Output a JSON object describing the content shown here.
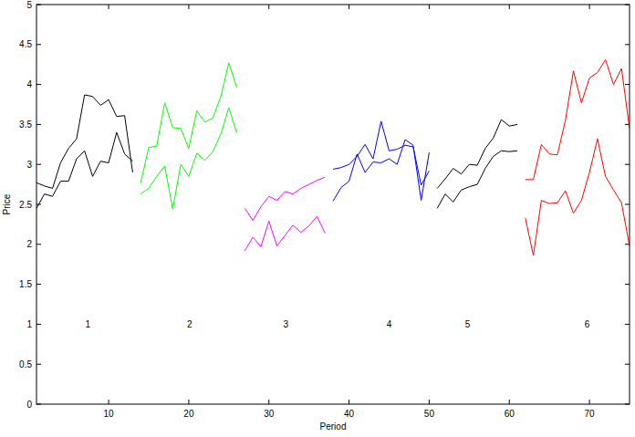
{
  "chart_data": {
    "type": "line",
    "x_label": "Period",
    "y_label": "Price",
    "xlim": [
      1,
      75
    ],
    "xticks": [
      10,
      20,
      30,
      40,
      50,
      60,
      70
    ],
    "ylim": [
      0,
      5
    ],
    "yticks": [
      0,
      0.5,
      1,
      1.5,
      2,
      2.5,
      3,
      3.5,
      4,
      4.5,
      5
    ],
    "grid": false,
    "annotations": [
      {
        "text": "1",
        "x": 7.4,
        "y": 1
      },
      {
        "text": "2",
        "x": 20.1,
        "y": 1
      },
      {
        "text": "3",
        "x": 32.1,
        "y": 1
      },
      {
        "text": "4",
        "x": 45,
        "y": 1
      },
      {
        "text": "5",
        "x": 54.8,
        "y": 1
      },
      {
        "text": "6",
        "x": 69.7,
        "y": 1
      }
    ],
    "series": [
      {
        "color": "#000000",
        "x": [
          1,
          2,
          3,
          4,
          5,
          6,
          7,
          8,
          9,
          10,
          11,
          12,
          13
        ],
        "values": [
          2.77,
          2.73,
          2.7,
          3.02,
          3.2,
          3.32,
          3.87,
          3.85,
          3.74,
          3.81,
          3.6,
          3.61,
          2.9
        ]
      },
      {
        "color": "#000000",
        "x": [
          1,
          2,
          3,
          4,
          5,
          6,
          7,
          8,
          9,
          10,
          11,
          12,
          13
        ],
        "values": [
          2.45,
          2.63,
          2.6,
          2.79,
          2.79,
          3.07,
          3.17,
          2.85,
          3.04,
          3.02,
          3.4,
          3.13,
          3.04
        ]
      },
      {
        "color": "#00ff00",
        "x": [
          14,
          15,
          16,
          17,
          18,
          19,
          20,
          21,
          22,
          23,
          24,
          25,
          26
        ],
        "values": [
          2.77,
          3.21,
          3.23,
          3.77,
          3.46,
          3.45,
          3.2,
          3.67,
          3.53,
          3.58,
          3.85,
          4.27,
          3.96
        ]
      },
      {
        "color": "#00ff00",
        "x": [
          14,
          15,
          16,
          17,
          18,
          19,
          20,
          21,
          22,
          23,
          24,
          25,
          26
        ],
        "values": [
          2.63,
          2.7,
          2.85,
          2.98,
          2.44,
          3.0,
          2.85,
          3.14,
          3.05,
          3.16,
          3.38,
          3.71,
          3.39
        ]
      },
      {
        "color": "#ff00ff",
        "x": [
          27,
          28,
          29,
          30,
          31,
          32,
          33,
          34,
          35,
          36,
          37
        ],
        "values": [
          2.45,
          2.3,
          2.47,
          2.6,
          2.55,
          2.66,
          2.63,
          2.7,
          2.75,
          2.8,
          2.84
        ]
      },
      {
        "color": "#ff00ff",
        "x": [
          27,
          28,
          29,
          30,
          31,
          32,
          33,
          34,
          35,
          36,
          37
        ],
        "values": [
          1.92,
          2.09,
          1.97,
          2.29,
          1.98,
          2.11,
          2.24,
          2.15,
          2.23,
          2.35,
          2.14
        ]
      },
      {
        "color": "#0000ff",
        "x": [
          38,
          39,
          40,
          41,
          42,
          43,
          44,
          45,
          46,
          47,
          48,
          49,
          50
        ],
        "values": [
          2.94,
          2.96,
          3.0,
          3.1,
          3.25,
          3.07,
          3.54,
          3.17,
          3.19,
          3.24,
          3.22,
          2.74,
          2.92
        ]
      },
      {
        "color": "#0000ff",
        "x": [
          38,
          39,
          40,
          41,
          42,
          43,
          44,
          45,
          46,
          47,
          48,
          49,
          50
        ],
        "values": [
          2.54,
          2.71,
          2.79,
          3.13,
          2.9,
          3.03,
          3.02,
          3.07,
          3.0,
          3.31,
          3.24,
          2.55,
          3.15
        ]
      },
      {
        "color": "#000000",
        "x": [
          51,
          52,
          53,
          54,
          55,
          56,
          57,
          58,
          59,
          60,
          61
        ],
        "values": [
          2.7,
          2.82,
          2.95,
          2.88,
          3.0,
          2.99,
          3.2,
          3.33,
          3.56,
          3.48,
          3.5
        ]
      },
      {
        "color": "#000000",
        "x": [
          51,
          52,
          53,
          54,
          55,
          56,
          57,
          58,
          59,
          60,
          61
        ],
        "values": [
          2.45,
          2.63,
          2.53,
          2.68,
          2.72,
          2.75,
          2.95,
          3.1,
          3.17,
          3.16,
          3.17
        ]
      },
      {
        "color": "#ff0000",
        "x": [
          62,
          63,
          64,
          65,
          66,
          67,
          68,
          69,
          70,
          71,
          72,
          73,
          74,
          75
        ],
        "values": [
          2.81,
          2.81,
          3.25,
          3.13,
          3.12,
          3.55,
          4.17,
          3.77,
          4.08,
          4.15,
          4.31,
          4.0,
          4.2,
          3.45
        ]
      },
      {
        "color": "#ff0000",
        "x": [
          62,
          63,
          64,
          65,
          66,
          67,
          68,
          69,
          70,
          71,
          72,
          73,
          74,
          75
        ],
        "values": [
          2.33,
          1.86,
          2.55,
          2.51,
          2.52,
          2.67,
          2.39,
          2.55,
          2.9,
          3.32,
          2.85,
          2.68,
          2.52,
          1.98
        ]
      }
    ]
  }
}
